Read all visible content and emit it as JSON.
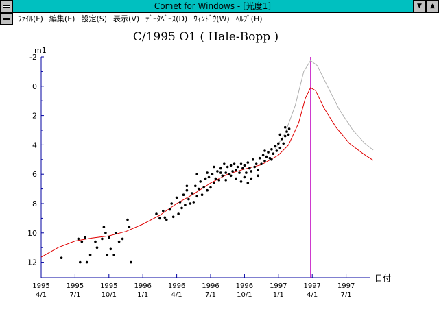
{
  "window": {
    "title": "Comet for Windows - [光度1]"
  },
  "menu": {
    "items": [
      {
        "label": "ﾌｧｲﾙ(F)"
      },
      {
        "label": "編集(E)"
      },
      {
        "label": "設定(S)"
      },
      {
        "label": "表示(V)"
      },
      {
        "label": "ﾃﾞｰﾀﾍﾞｰｽ(D)"
      },
      {
        "label": "ｳｨﾝﾄﾞｳ(W)"
      },
      {
        "label": "ﾍﾙﾌﾟ(H)"
      }
    ]
  },
  "colors": {
    "titlebar": "#00c0c0",
    "axis": "#0000a0",
    "predicted_curve": "#e00000",
    "upper_curve": "#b0b0b0",
    "perihelion_line": "#c000c0",
    "observations": "#000000"
  },
  "chart_data": {
    "type": "scatter",
    "title": "C/1995 O1 ( Hale-Bopp )",
    "ylabel": "m1",
    "xlabel": "日付",
    "y_inverted": true,
    "ylim": [
      -2,
      13
    ],
    "y_ticks": [
      -2,
      0,
      2,
      4,
      6,
      8,
      10,
      12
    ],
    "x_ticks": [
      {
        "year": "1995",
        "date": "4/1",
        "t": 0
      },
      {
        "year": "1995",
        "date": "7/1",
        "t": 1
      },
      {
        "year": "1995",
        "date": "10/1",
        "t": 2
      },
      {
        "year": "1996",
        "date": "1/1",
        "t": 3
      },
      {
        "year": "1996",
        "date": "4/1",
        "t": 4
      },
      {
        "year": "1996",
        "date": "7/1",
        "t": 5
      },
      {
        "year": "1996",
        "date": "10/1",
        "t": 6
      },
      {
        "year": "1997",
        "date": "1/1",
        "t": 7
      },
      {
        "year": "1997",
        "date": "4/1",
        "t": 8
      },
      {
        "year": "1997",
        "date": "7/1",
        "t": 9
      }
    ],
    "xlim": [
      0,
      9.8
    ],
    "perihelion_t": 7.95,
    "series": [
      {
        "kind": "line",
        "color_key": "predicted_curve",
        "points": [
          [
            0,
            11.65
          ],
          [
            0.5,
            11
          ],
          [
            1,
            10.55
          ],
          [
            1.5,
            10.35
          ],
          [
            2,
            10.2
          ],
          [
            2.5,
            9.9
          ],
          [
            3,
            9.4
          ],
          [
            3.5,
            8.8
          ],
          [
            4,
            8.0
          ],
          [
            4.5,
            7.35
          ],
          [
            5,
            6.6
          ],
          [
            5.5,
            6.0
          ],
          [
            6,
            5.65
          ],
          [
            6.5,
            5.35
          ],
          [
            7,
            4.7
          ],
          [
            7.3,
            4.0
          ],
          [
            7.6,
            2.5
          ],
          [
            7.8,
            0.8
          ],
          [
            7.95,
            0.1
          ],
          [
            8.1,
            0.3
          ],
          [
            8.35,
            1.5
          ],
          [
            8.7,
            2.8
          ],
          [
            9.1,
            3.9
          ],
          [
            9.5,
            4.6
          ],
          [
            9.8,
            5.05
          ]
        ]
      },
      {
        "kind": "line",
        "color_key": "upper_curve",
        "points": [
          [
            6.9,
            4.3
          ],
          [
            7.2,
            3.2
          ],
          [
            7.5,
            1.3
          ],
          [
            7.75,
            -1.0
          ],
          [
            7.95,
            -1.75
          ],
          [
            8.15,
            -1.4
          ],
          [
            8.45,
            0.0
          ],
          [
            8.8,
            1.6
          ],
          [
            9.2,
            3.0
          ],
          [
            9.55,
            3.9
          ],
          [
            9.8,
            4.35
          ]
        ]
      },
      {
        "kind": "scatter",
        "color_key": "observations",
        "points": [
          [
            0.6,
            11.7
          ],
          [
            1.1,
            10.4
          ],
          [
            1.15,
            12.0
          ],
          [
            1.2,
            10.6
          ],
          [
            1.3,
            10.3
          ],
          [
            1.35,
            12.0
          ],
          [
            1.45,
            11.5
          ],
          [
            1.6,
            10.6
          ],
          [
            1.65,
            11.0
          ],
          [
            1.8,
            10.4
          ],
          [
            1.85,
            9.6
          ],
          [
            1.9,
            10.0
          ],
          [
            1.95,
            11.5
          ],
          [
            2.0,
            10.3
          ],
          [
            2.05,
            11.1
          ],
          [
            2.15,
            11.5
          ],
          [
            2.2,
            10.0
          ],
          [
            2.3,
            10.6
          ],
          [
            2.4,
            10.4
          ],
          [
            2.55,
            9.1
          ],
          [
            2.65,
            12.0
          ],
          [
            2.6,
            9.6
          ],
          [
            3.4,
            8.7
          ],
          [
            3.5,
            9.0
          ],
          [
            3.6,
            8.5
          ],
          [
            3.65,
            8.95
          ],
          [
            3.7,
            9.1
          ],
          [
            3.8,
            8.4
          ],
          [
            3.85,
            8.0
          ],
          [
            3.9,
            8.9
          ],
          [
            4.0,
            7.6
          ],
          [
            4.05,
            8.7
          ],
          [
            4.1,
            7.9
          ],
          [
            4.15,
            8.3
          ],
          [
            4.2,
            7.4
          ],
          [
            4.25,
            8.1
          ],
          [
            4.3,
            7.1
          ],
          [
            4.35,
            7.7
          ],
          [
            4.4,
            8.0
          ],
          [
            4.45,
            7.3
          ],
          [
            4.5,
            7.9
          ],
          [
            4.55,
            6.8
          ],
          [
            4.6,
            7.5
          ],
          [
            4.65,
            7.0
          ],
          [
            4.7,
            6.5
          ],
          [
            4.75,
            7.4
          ],
          [
            4.8,
            6.9
          ],
          [
            4.85,
            6.3
          ],
          [
            4.9,
            7.1
          ],
          [
            4.95,
            6.2
          ],
          [
            5.0,
            6.9
          ],
          [
            5.05,
            6.0
          ],
          [
            5.1,
            6.6
          ],
          [
            5.15,
            6.3
          ],
          [
            5.2,
            5.8
          ],
          [
            5.25,
            6.4
          ],
          [
            5.3,
            5.6
          ],
          [
            5.35,
            6.1
          ],
          [
            5.4,
            5.3
          ],
          [
            5.45,
            5.9
          ],
          [
            5.5,
            5.5
          ],
          [
            5.55,
            6.0
          ],
          [
            5.6,
            5.4
          ],
          [
            5.65,
            5.8
          ],
          [
            5.7,
            5.3
          ],
          [
            5.75,
            5.7
          ],
          [
            5.8,
            5.5
          ],
          [
            5.85,
            5.9
          ],
          [
            5.9,
            5.3
          ],
          [
            5.95,
            5.6
          ],
          [
            6.0,
            5.4
          ],
          [
            6.05,
            5.9
          ],
          [
            6.1,
            5.2
          ],
          [
            6.15,
            5.6
          ],
          [
            6.2,
            5.8
          ],
          [
            6.25,
            5.0
          ],
          [
            6.3,
            5.5
          ],
          [
            6.35,
            5.3
          ],
          [
            6.4,
            5.7
          ],
          [
            6.45,
            4.9
          ],
          [
            6.5,
            5.3
          ],
          [
            6.55,
            4.7
          ],
          [
            6.6,
            5.1
          ],
          [
            6.65,
            4.8
          ],
          [
            6.7,
            4.5
          ],
          [
            6.75,
            4.9
          ],
          [
            6.8,
            4.3
          ],
          [
            6.85,
            4.6
          ],
          [
            6.9,
            4.1
          ],
          [
            6.95,
            4.4
          ],
          [
            7.0,
            3.9
          ],
          [
            7.05,
            4.2
          ],
          [
            7.1,
            3.6
          ],
          [
            7.15,
            3.9
          ],
          [
            7.2,
            3.4
          ],
          [
            7.25,
            3.1
          ],
          [
            7.3,
            3.3
          ],
          [
            7.32,
            2.9
          ],
          [
            5.45,
            6.4
          ],
          [
            5.6,
            6.1
          ],
          [
            5.75,
            6.3
          ],
          [
            6.0,
            6.2
          ],
          [
            6.2,
            6.3
          ],
          [
            6.4,
            6.1
          ],
          [
            4.6,
            6.0
          ],
          [
            4.3,
            6.8
          ],
          [
            4.9,
            5.9
          ],
          [
            5.1,
            5.5
          ],
          [
            5.3,
            5.9
          ],
          [
            6.6,
            4.4
          ],
          [
            6.8,
            5.0
          ],
          [
            7.05,
            3.3
          ],
          [
            7.2,
            2.8
          ],
          [
            6.1,
            6.6
          ],
          [
            5.9,
            6.5
          ]
        ]
      }
    ]
  }
}
